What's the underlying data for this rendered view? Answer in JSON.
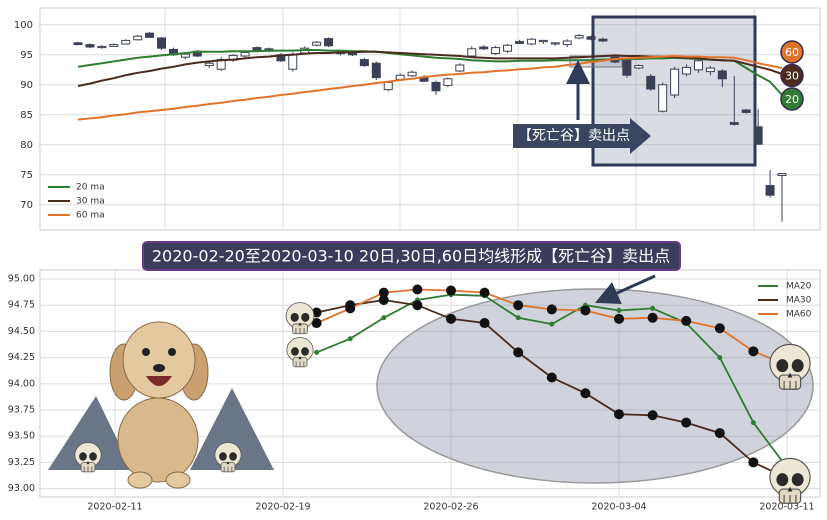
{
  "chart_data": [
    {
      "type": "candlestick",
      "open": [
        97.0,
        96.7,
        96.2,
        96.4,
        96.8,
        97.5,
        98.6,
        97.8,
        95.9,
        94.6,
        95.6,
        93.2,
        92.6,
        94.1,
        94.8,
        96.2,
        96.0,
        95.0,
        92.6,
        95.3,
        96.6,
        97.7,
        95.2,
        95.3,
        94.2,
        93.6,
        89.2,
        90.9,
        91.5,
        91.3,
        90.4,
        89.9,
        92.3,
        94.8,
        96.3,
        95.2,
        95.6,
        97.2,
        96.8,
        97.2,
        96.8,
        96.7,
        97.8,
        98.0,
        97.6,
        94.6,
        94.2,
        92.8,
        91.4,
        85.6,
        88.3,
        91.8,
        92.5,
        92.2,
        92.3,
        83.7,
        85.8,
        83.0,
        73.2,
        74.9
      ],
      "high": [
        97.2,
        96.9,
        96.6,
        96.9,
        97.6,
        98.3,
        98.8,
        98.0,
        96.2,
        95.3,
        95.8,
        93.8,
        94.6,
        95.1,
        95.6,
        96.4,
        96.2,
        95.3,
        95.4,
        96.4,
        97.3,
        97.9,
        95.8,
        95.5,
        94.5,
        93.9,
        90.7,
        91.9,
        92.4,
        91.6,
        90.7,
        91.2,
        93.6,
        96.4,
        96.6,
        96.5,
        96.8,
        97.5,
        97.8,
        97.5,
        97.1,
        97.6,
        98.5,
        98.2,
        97.9,
        94.9,
        94.6,
        93.4,
        91.8,
        90.4,
        93.0,
        93.4,
        94.3,
        93.1,
        92.6,
        91.5,
        86.0,
        86.0,
        75.8,
        75.1
      ],
      "low": [
        96.6,
        96.1,
        96.0,
        96.3,
        96.7,
        97.4,
        97.8,
        95.8,
        94.8,
        94.3,
        94.6,
        92.8,
        92.3,
        93.8,
        94.4,
        95.6,
        95.4,
        93.8,
        92.2,
        95.1,
        96.4,
        96.3,
        94.9,
        94.8,
        93.0,
        90.8,
        88.9,
        90.6,
        91.3,
        90.4,
        88.3,
        89.6,
        92.1,
        94.5,
        95.8,
        95.0,
        95.3,
        96.8,
        96.6,
        96.8,
        96.5,
        96.3,
        97.6,
        97.4,
        97.1,
        93.6,
        91.2,
        92.6,
        89.0,
        85.4,
        87.8,
        91.4,
        92.0,
        91.6,
        89.6,
        83.2,
        85.2,
        80.0,
        71.2,
        67.2
      ],
      "close": [
        96.7,
        96.3,
        96.4,
        96.7,
        97.4,
        98.1,
        97.9,
        96.1,
        95.0,
        95.1,
        94.8,
        93.6,
        94.2,
        94.9,
        95.4,
        95.8,
        95.6,
        94.0,
        95.1,
        96.1,
        97.1,
        96.5,
        95.6,
        95.0,
        93.2,
        91.2,
        90.4,
        91.6,
        92.1,
        90.6,
        89.0,
        91.0,
        93.3,
        96.0,
        96.0,
        96.2,
        96.6,
        96.9,
        97.6,
        97.4,
        97.0,
        97.3,
        98.2,
        97.6,
        97.3,
        93.8,
        91.6,
        93.2,
        89.3,
        90.0,
        92.6,
        92.9,
        94.0,
        92.8,
        91.0,
        83.4,
        85.4,
        80.1,
        71.6,
        75.2
      ],
      "up_color": "#ffffff",
      "down_color": "#3a4157",
      "series": [
        {
          "name": "20 ma",
          "color": "#2f7d32",
          "values": [
            93.0,
            93.3,
            93.6,
            93.9,
            94.2,
            94.5,
            94.7,
            94.9,
            95.1,
            95.3,
            95.5,
            95.5,
            95.5,
            95.6,
            95.6,
            95.6,
            95.7,
            95.7,
            95.7,
            95.8,
            95.8,
            95.7,
            95.7,
            95.6,
            95.6,
            95.5,
            95.3,
            95.1,
            94.9,
            94.7,
            94.5,
            94.4,
            94.3,
            94.1,
            94.0,
            93.9,
            93.9,
            94.0,
            94.0,
            94.0,
            94.1,
            94.1,
            94.1,
            94.1,
            94.2,
            94.2,
            94.3,
            94.3,
            94.4,
            94.4,
            94.5,
            94.4,
            94.3,
            94.2,
            94.1,
            94.0,
            92.8,
            91.6,
            90.5,
            88.3
          ]
        },
        {
          "name": "30 ma",
          "color": "#4a2c1e",
          "values": [
            89.8,
            90.2,
            90.7,
            91.1,
            91.6,
            92.0,
            92.3,
            92.7,
            93.0,
            93.4,
            93.7,
            93.9,
            94.1,
            94.2,
            94.4,
            94.6,
            94.7,
            94.9,
            95.0,
            95.2,
            95.3,
            95.3,
            95.4,
            95.4,
            95.5,
            95.5,
            95.4,
            95.3,
            95.2,
            95.1,
            95.0,
            94.9,
            94.8,
            94.6,
            94.5,
            94.4,
            94.4,
            94.4,
            94.4,
            94.4,
            94.4,
            94.5,
            94.6,
            94.7,
            94.8,
            94.9,
            94.8,
            94.8,
            94.7,
            94.7,
            94.6,
            94.5,
            94.4,
            94.2,
            94.1,
            94.0,
            93.5,
            93.0,
            92.5,
            91.8
          ]
        },
        {
          "name": "60 ma",
          "color": "#e0742a",
          "values": [
            84.2,
            84.4,
            84.6,
            84.9,
            85.1,
            85.4,
            85.6,
            85.8,
            86.0,
            86.3,
            86.5,
            86.8,
            87.0,
            87.3,
            87.5,
            87.8,
            88.0,
            88.3,
            88.5,
            88.8,
            89.0,
            89.3,
            89.5,
            89.8,
            90.0,
            90.3,
            90.5,
            90.8,
            91.0,
            91.3,
            91.5,
            91.7,
            91.8,
            92.0,
            92.1,
            92.3,
            92.4,
            92.6,
            92.7,
            92.9,
            93.0,
            93.3,
            93.5,
            93.8,
            94.0,
            94.3,
            94.4,
            94.5,
            94.6,
            94.7,
            94.8,
            94.7,
            94.7,
            94.6,
            94.6,
            94.5,
            94.1,
            93.6,
            93.2,
            92.8
          ]
        }
      ],
      "ylim": [
        65.8,
        102.8
      ],
      "yticks": [
        70,
        75,
        80,
        85,
        90,
        95,
        100
      ],
      "grid": true,
      "legend": "lower left",
      "badges": [
        {
          "label": "60",
          "color": "#e0742a"
        },
        {
          "label": "30",
          "color": "#4a2c1e"
        },
        {
          "label": "20",
          "color": "#2f7d32"
        }
      ],
      "annotation": "【死亡谷】卖出点"
    },
    {
      "type": "line",
      "title": "2020-02-20至2020-03-10 20日,30日,60日均线形成【死亡谷】卖出点",
      "categories": [
        "2020-02-11",
        null,
        null,
        null,
        null,
        "2020-02-19",
        null,
        null,
        null,
        null,
        "2020-02-26",
        null,
        null,
        null,
        null,
        "2020-03-04",
        null,
        null,
        null,
        null,
        "2020-03-11"
      ],
      "series": [
        {
          "name": "MA20",
          "color": "#2f7d32",
          "values": [
            null,
            null,
            null,
            null,
            null,
            null,
            94.3,
            94.43,
            94.63,
            94.8,
            94.85,
            94.84,
            94.63,
            94.57,
            94.75,
            94.7,
            94.72,
            94.58,
            94.25,
            93.63,
            93.2
          ]
        },
        {
          "name": "MA30",
          "color": "#4a2c1e",
          "values": [
            null,
            null,
            null,
            null,
            null,
            null,
            94.68,
            94.75,
            94.8,
            94.75,
            94.62,
            94.58,
            94.3,
            94.06,
            93.91,
            93.71,
            93.7,
            93.63,
            93.53,
            93.25,
            93.1
          ]
        },
        {
          "name": "MA60",
          "color": "#e0742a",
          "values": [
            null,
            null,
            null,
            null,
            null,
            null,
            94.58,
            94.72,
            94.87,
            94.9,
            94.89,
            94.87,
            94.75,
            94.71,
            94.7,
            94.62,
            94.63,
            94.6,
            94.53,
            94.31,
            94.18
          ]
        }
      ],
      "ylim": [
        92.92,
        95.086
      ],
      "yticks": [
        {
          "value": 93,
          "label": "93.00"
        },
        {
          "value": 93.25,
          "label": "93.25"
        },
        {
          "value": 93.5,
          "label": "93.50"
        },
        {
          "value": 93.75,
          "label": "93.75"
        },
        {
          "value": 94,
          "label": "94.00"
        },
        {
          "value": 94.25,
          "label": "94.25"
        },
        {
          "value": 94.5,
          "label": "94.50"
        },
        {
          "value": 94.75,
          "label": "94.75"
        },
        {
          "value": 95,
          "label": "95.00"
        }
      ],
      "grid": true,
      "legend": "upper right"
    }
  ]
}
